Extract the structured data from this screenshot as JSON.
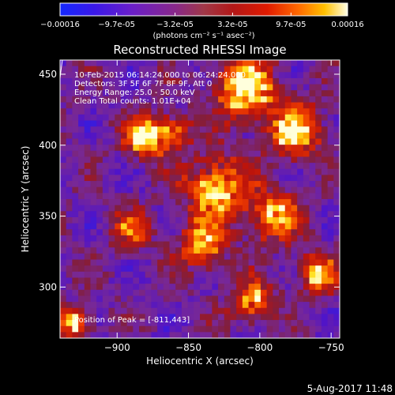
{
  "chart_data": {
    "type": "heatmap",
    "title": "Reconstructed RHESSI Image",
    "xlabel": "Heliocentric X (arcsec)",
    "ylabel": "Heliocentric Y (arcsec)",
    "xlim": [
      -940,
      -744
    ],
    "ylim": [
      264,
      460
    ],
    "xticks": [
      -900,
      -850,
      -800,
      -750
    ],
    "yticks": [
      300,
      350,
      400,
      450
    ],
    "colormap": "rhessi-colortable-5",
    "colorbar": {
      "range": [
        -0.00016,
        0.00016
      ],
      "tick_values": [
        -0.00016,
        -9.7e-05,
        -3.2e-05,
        3.2e-05,
        9.7e-05,
        0.00016
      ],
      "tick_labels": [
        "-0.00016",
        "-9.7e-05",
        "-3.2e-05",
        "3.2e-05",
        "9.7e-05",
        "0.00016"
      ],
      "unit_label": "(photons cm⁻² s⁻¹ asec⁻²)"
    },
    "limb": {
      "color": "#ffffff"
    },
    "annotations": [
      "10-Feb-2015 06:14:24.000 to 06:24:24.000",
      "Detectors: 3F 5F 6F 7F 8F 9F, Att 0",
      "Energy Range: 25.0 - 50.0 keV",
      "Clean     Total counts: 1.01E+04"
    ],
    "peak_label": "Position of Peak = [-811,443]",
    "peak_position": [
      -811,
      443
    ]
  },
  "footer": {
    "timestamp": "5-Aug-2017 11:48"
  }
}
